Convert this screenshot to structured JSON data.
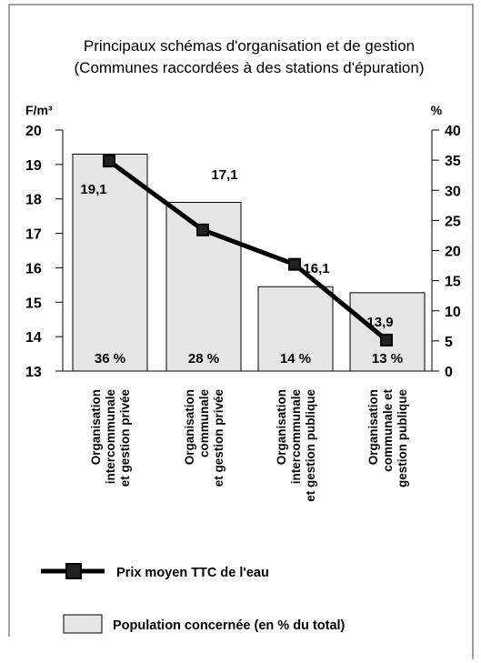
{
  "chart_data": {
    "type": "bar+line",
    "title": "Principaux schémas d'organisation et de gestion",
    "subtitle": "(Communes raccordées à des stations d'épuration)",
    "y_left_unit": "F/m³",
    "y_right_unit": "%",
    "y_left_range": [
      13,
      20
    ],
    "y_left_ticks": [
      "20",
      "19",
      "18",
      "17",
      "16",
      "15",
      "14",
      "13"
    ],
    "y_right_range": [
      0,
      40
    ],
    "y_right_ticks": [
      "40",
      "35",
      "30",
      "25",
      "20",
      "15",
      "10",
      "5",
      "0"
    ],
    "categories": [
      [
        "Organisation",
        "intercommunale",
        "et gestion privée"
      ],
      [
        "Organisation",
        "communale",
        "et gestion privée"
      ],
      [
        "Organisation",
        "intercommunale",
        "et gestion publique"
      ],
      [
        "Organisation",
        "communale et",
        "gestion publique"
      ]
    ],
    "series": [
      {
        "name": "Population concernée (en % du total)",
        "type": "bar",
        "axis": "right",
        "values": [
          36,
          28,
          14,
          13
        ],
        "labels": [
          "36 %",
          "28 %",
          "14 %",
          "13 %"
        ],
        "color": "#e6e6e6"
      },
      {
        "name": "Prix moyen TTC de l'eau",
        "type": "line",
        "axis": "left",
        "values": [
          19.1,
          17.1,
          16.1,
          13.9
        ],
        "labels": [
          "19,1",
          "17,1",
          "16,1",
          "13,9"
        ],
        "color": "#000000",
        "marker_color": "#222222"
      }
    ],
    "grid": false,
    "legend_position": "bottom"
  }
}
